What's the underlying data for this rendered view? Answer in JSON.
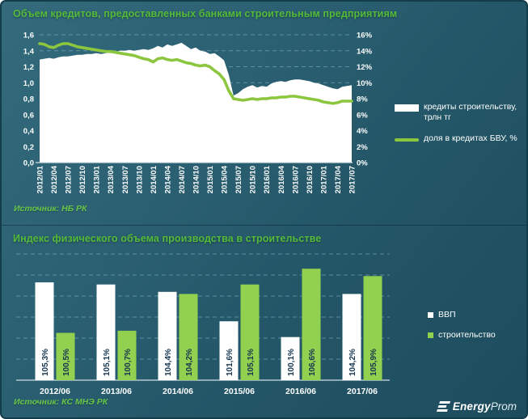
{
  "panel_top": {
    "title": "Объем кредитов, предоставленных банками строительным предприятиям",
    "source": "Источник: НБ РК",
    "legend": [
      {
        "label": "кредиты строительству, трлн тг",
        "color": "#ffffff",
        "swatch": "bar"
      },
      {
        "label": "доля в кредитах БВУ, %",
        "color": "#8cc63e",
        "swatch": "line"
      }
    ]
  },
  "panel_bottom": {
    "title": "Индекс физического объема производства в строительстве",
    "source": "Источник: КС МНЭ РК",
    "legend": [
      {
        "label": "ВВП",
        "color": "#ffffff"
      },
      {
        "label": "строительство",
        "color": "#92d050"
      }
    ]
  },
  "logo": {
    "icon": "energyprom-logo-icon",
    "bold": "Energy",
    "light": "Prom"
  },
  "colors": {
    "background_top": "#336b7c",
    "background_bottom": "#1d4c5d",
    "title_green": "#55bb3a",
    "line_green": "#8cc63e",
    "bar_green": "#92d050",
    "source_green": "#67c649",
    "grid": "#8fc3d4",
    "axis_line": "#cfdde2",
    "bar_label_text": "#173750"
  },
  "chart_data": [
    {
      "type": "area",
      "title": "Объем кредитов, предоставленных банками строительным предприятиям",
      "grid": "dashed-horizontal",
      "legend_position": "right",
      "points_per_tick": 3,
      "x_tick_labels": [
        "2012/01",
        "2012/04",
        "2012/07",
        "2012/10",
        "2013/01",
        "2013/04",
        "2013/07",
        "2013/10",
        "2014/01",
        "2014/04",
        "2014/07",
        "2014/10",
        "2015/01",
        "2015/04",
        "2015/07",
        "2015/10",
        "2016/01",
        "2016/04",
        "2016/07",
        "2016/10",
        "2017/01",
        "2017/04",
        "2017/07"
      ],
      "ylim_left": [
        0,
        1.6
      ],
      "ylim_right": [
        0,
        16
      ],
      "yticks_left": [
        "0,0",
        "0,2",
        "0,4",
        "0,6",
        "0,8",
        "1,0",
        "1,2",
        "1,4",
        "1,6"
      ],
      "yticks_right": [
        "0%",
        "2%",
        "4%",
        "6%",
        "8%",
        "10%",
        "12%",
        "14%",
        "16%"
      ],
      "series": [
        {
          "name": "кредиты строительству, трлн тг",
          "render": "area",
          "axis": "left",
          "color": "#ffffff",
          "values": [
            1.29,
            1.3,
            1.31,
            1.3,
            1.32,
            1.33,
            1.33,
            1.34,
            1.35,
            1.35,
            1.36,
            1.36,
            1.37,
            1.36,
            1.37,
            1.38,
            1.39,
            1.4,
            1.4,
            1.41,
            1.4,
            1.41,
            1.42,
            1.41,
            1.43,
            1.46,
            1.44,
            1.48,
            1.46,
            1.48,
            1.5,
            1.46,
            1.42,
            1.44,
            1.4,
            1.39,
            1.36,
            1.37,
            1.33,
            1.28,
            1.1,
            0.84,
            0.87,
            0.92,
            0.95,
            0.97,
            0.94,
            0.96,
            0.95,
            0.99,
            1.01,
            1.02,
            1.01,
            1.03,
            1.04,
            1.04,
            1.03,
            1.02,
            1.0,
            0.99,
            0.97,
            0.95,
            0.93,
            0.92,
            0.95,
            0.96,
            0.97
          ]
        },
        {
          "name": "доля в кредитах БВУ, %",
          "render": "line",
          "axis": "right",
          "color": "#8cc63e",
          "values": [
            14.9,
            14.8,
            14.5,
            14.4,
            14.7,
            14.9,
            14.9,
            14.7,
            14.5,
            14.4,
            14.3,
            14.2,
            14.1,
            14.0,
            13.9,
            13.9,
            13.8,
            13.7,
            13.6,
            13.5,
            13.4,
            13.2,
            13.0,
            12.9,
            12.6,
            13.0,
            13.1,
            12.9,
            12.8,
            12.9,
            12.7,
            12.5,
            12.4,
            12.2,
            12.1,
            12.2,
            12.0,
            11.5,
            11.1,
            10.4,
            9.0,
            8.0,
            7.9,
            7.8,
            7.9,
            8.0,
            7.9,
            8.0,
            8.0,
            8.1,
            8.1,
            8.2,
            8.2,
            8.3,
            8.3,
            8.2,
            8.1,
            8.0,
            7.9,
            7.8,
            7.6,
            7.5,
            7.4,
            7.5,
            7.7,
            7.7,
            7.7
          ]
        }
      ]
    },
    {
      "type": "bar",
      "title": "Индекс физического объема производства в строительстве",
      "grid": "dashed-horizontal",
      "legend_position": "right",
      "categories": [
        "2012/06",
        "2013/06",
        "2014/06",
        "2015/06",
        "2016/06",
        "2017/06"
      ],
      "ylim": [
        96,
        108
      ],
      "series": [
        {
          "name": "ВВП",
          "color": "#ffffff",
          "values": [
            105.3,
            105.1,
            104.4,
            101.6,
            100.1,
            104.2
          ],
          "labels": [
            "105,3%",
            "105,1%",
            "104,4%",
            "101,6%",
            "100,1%",
            "104,2%"
          ]
        },
        {
          "name": "строительство",
          "color": "#92d050",
          "values": [
            100.5,
            100.7,
            104.2,
            105.1,
            106.6,
            105.9
          ],
          "labels": [
            "100,5%",
            "100,7%",
            "104,2%",
            "105,1%",
            "106,6%",
            "105,9%"
          ]
        }
      ]
    }
  ]
}
